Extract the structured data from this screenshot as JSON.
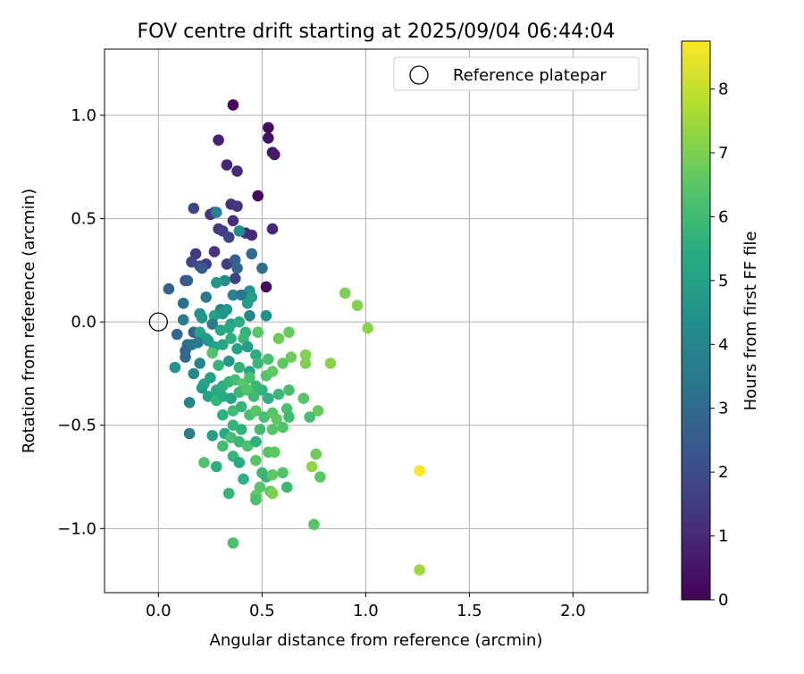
{
  "chart_data": {
    "type": "scatter",
    "title": "FOV centre drift starting at 2025/09/04 06:44:04",
    "xlabel": "Angular distance from reference (arcmin)",
    "ylabel": "Rotation from reference (arcmin)",
    "xlim": [
      -0.26,
      2.36
    ],
    "ylim": [
      -1.31,
      1.32
    ],
    "xticks": [
      0.0,
      0.5,
      1.0,
      1.5,
      2.0
    ],
    "xtick_labels": [
      "0.0",
      "0.5",
      "1.0",
      "1.5",
      "2.0"
    ],
    "yticks": [
      -1.0,
      -0.5,
      0.0,
      0.5,
      1.0
    ],
    "ytick_labels": [
      "−1.0",
      "−0.5",
      "0.0",
      "0.5",
      "1.0"
    ],
    "grid": true,
    "legend": {
      "position": "top-right",
      "entries": [
        "Reference platepar"
      ]
    },
    "colorbar": {
      "label": "Hours from first FF file",
      "range": [
        0,
        8.75
      ],
      "ticks": [
        0,
        1,
        2,
        3,
        4,
        5,
        6,
        7,
        8
      ],
      "tick_labels": [
        "0",
        "1",
        "2",
        "3",
        "4",
        "5",
        "6",
        "7",
        "8"
      ],
      "colormap": "viridis"
    },
    "reference_point": {
      "x": 0.0,
      "y": 0.0
    },
    "series": [
      {
        "points": [
          [
            0.36,
            1.05,
            0.2
          ],
          [
            0.53,
            0.94,
            0.3
          ],
          [
            0.53,
            0.89,
            0.4
          ],
          [
            0.55,
            0.82,
            0.5
          ],
          [
            0.56,
            0.81,
            0.6
          ],
          [
            0.29,
            0.88,
            0.8
          ],
          [
            0.33,
            0.76,
            0.9
          ],
          [
            0.38,
            0.73,
            1.0
          ],
          [
            0.48,
            0.61,
            0.2
          ],
          [
            0.35,
            0.57,
            1.2
          ],
          [
            0.38,
            0.56,
            1.3
          ],
          [
            0.27,
            0.53,
            1.5
          ],
          [
            0.17,
            0.55,
            1.8
          ],
          [
            0.25,
            0.52,
            1.4
          ],
          [
            0.36,
            0.49,
            1.1
          ],
          [
            0.29,
            0.45,
            1.4
          ],
          [
            0.31,
            0.44,
            1.6
          ],
          [
            0.42,
            0.43,
            1.2
          ],
          [
            0.45,
            0.42,
            1.0
          ],
          [
            0.55,
            0.45,
            1.0
          ],
          [
            0.34,
            0.41,
            1.7
          ],
          [
            0.28,
            0.53,
            3.8
          ],
          [
            0.39,
            0.44,
            4.2
          ],
          [
            0.18,
            0.33,
            1.5
          ],
          [
            0.27,
            0.34,
            1.2
          ],
          [
            0.16,
            0.29,
            1.9
          ],
          [
            0.2,
            0.27,
            2.0
          ],
          [
            0.23,
            0.28,
            1.6
          ],
          [
            0.21,
            0.26,
            2.4
          ],
          [
            0.33,
            0.28,
            1.6
          ],
          [
            0.37,
            0.3,
            2.7
          ],
          [
            0.38,
            0.26,
            2.9
          ],
          [
            0.5,
            0.26,
            3.2
          ],
          [
            0.45,
            0.33,
            3.0
          ],
          [
            0.37,
            0.21,
            1.7
          ],
          [
            0.13,
            0.2,
            2.2
          ],
          [
            0.14,
            0.2,
            2.6
          ],
          [
            0.05,
            0.16,
            2.8
          ],
          [
            0.32,
            0.2,
            4.3
          ],
          [
            0.28,
            0.19,
            4.6
          ],
          [
            0.52,
            0.17,
            0.2
          ],
          [
            0.44,
            0.15,
            4.5
          ],
          [
            0.12,
            0.09,
            3.2
          ],
          [
            0.23,
            0.12,
            3.5
          ],
          [
            0.36,
            0.13,
            3.9
          ],
          [
            0.4,
            0.13,
            3.4
          ],
          [
            0.45,
            0.12,
            5.0
          ],
          [
            0.43,
            0.09,
            4.8
          ],
          [
            0.3,
            0.06,
            3.8
          ],
          [
            0.33,
            0.06,
            4.5
          ],
          [
            0.12,
            0.01,
            3.6
          ],
          [
            0.2,
            0.04,
            4.4
          ],
          [
            0.21,
            0.02,
            4.6
          ],
          [
            0.27,
            0.03,
            5.1
          ],
          [
            0.31,
            0.04,
            4.7
          ],
          [
            0.35,
            -0.01,
            4.9
          ],
          [
            0.39,
            0.0,
            5.5
          ],
          [
            0.44,
            0.03,
            3.9
          ],
          [
            0.52,
            0.03,
            4.4
          ],
          [
            0.09,
            -0.06,
            2.9
          ],
          [
            0.17,
            -0.05,
            2.7
          ],
          [
            0.26,
            -0.01,
            3.6
          ],
          [
            0.2,
            -0.05,
            5.1
          ],
          [
            0.23,
            -0.08,
            4.7
          ],
          [
            0.3,
            -0.04,
            5.2
          ],
          [
            0.34,
            -0.03,
            5.4
          ],
          [
            0.42,
            -0.05,
            5.7
          ],
          [
            0.48,
            -0.05,
            6.5
          ],
          [
            0.41,
            -0.08,
            5.9
          ],
          [
            0.14,
            -0.11,
            3.2
          ],
          [
            0.13,
            -0.14,
            2.9
          ],
          [
            0.16,
            -0.11,
            3.3
          ],
          [
            0.19,
            -0.1,
            3.5
          ],
          [
            0.24,
            -0.09,
            4.7
          ],
          [
            0.27,
            -0.12,
            5.0
          ],
          [
            0.31,
            -0.11,
            5.3
          ],
          [
            0.35,
            -0.08,
            5.6
          ],
          [
            0.38,
            -0.13,
            5.1
          ],
          [
            0.43,
            -0.12,
            4.8
          ],
          [
            0.47,
            -0.16,
            5.5
          ],
          [
            0.58,
            -0.08,
            6.8
          ],
          [
            0.63,
            -0.05,
            6.7
          ],
          [
            0.13,
            -0.17,
            3.0
          ],
          [
            0.08,
            -0.22,
            4.5
          ],
          [
            0.2,
            -0.2,
            3.9
          ],
          [
            0.26,
            -0.15,
            6.3
          ],
          [
            0.29,
            -0.21,
            5.8
          ],
          [
            0.34,
            -0.19,
            4.6
          ],
          [
            0.39,
            -0.22,
            5.7
          ],
          [
            0.44,
            -0.24,
            5.3
          ],
          [
            0.48,
            -0.2,
            5.9
          ],
          [
            0.53,
            -0.18,
            6.2
          ],
          [
            0.6,
            -0.2,
            6.6
          ],
          [
            0.64,
            -0.17,
            6.8
          ],
          [
            0.71,
            -0.16,
            7.1
          ],
          [
            0.71,
            -0.2,
            7.0
          ],
          [
            0.83,
            -0.2,
            7.2
          ],
          [
            0.9,
            0.14,
            7.0
          ],
          [
            0.96,
            0.08,
            7.1
          ],
          [
            1.01,
            -0.03,
            7.2
          ],
          [
            0.17,
            -0.25,
            4.1
          ],
          [
            0.22,
            -0.3,
            5.2
          ],
          [
            0.25,
            -0.27,
            5.0
          ],
          [
            0.28,
            -0.33,
            5.3
          ],
          [
            0.31,
            -0.31,
            5.6
          ],
          [
            0.34,
            -0.29,
            5.8
          ],
          [
            0.37,
            -0.28,
            6.1
          ],
          [
            0.41,
            -0.3,
            6.5
          ],
          [
            0.44,
            -0.27,
            6.2
          ],
          [
            0.47,
            -0.31,
            5.9
          ],
          [
            0.52,
            -0.26,
            6.4
          ],
          [
            0.55,
            -0.24,
            6.6
          ],
          [
            0.21,
            -0.32,
            4.8
          ],
          [
            0.15,
            -0.39,
            3.9
          ],
          [
            0.24,
            -0.36,
            5.0
          ],
          [
            0.28,
            -0.38,
            5.8
          ],
          [
            0.31,
            -0.36,
            5.4
          ],
          [
            0.35,
            -0.37,
            5.1
          ],
          [
            0.39,
            -0.34,
            5.9
          ],
          [
            0.43,
            -0.33,
            6.3
          ],
          [
            0.46,
            -0.36,
            6.0
          ],
          [
            0.5,
            -0.33,
            5.7
          ],
          [
            0.53,
            -0.37,
            5.6
          ],
          [
            0.58,
            -0.35,
            5.9
          ],
          [
            0.63,
            -0.33,
            6.1
          ],
          [
            0.7,
            -0.37,
            6.4
          ],
          [
            0.31,
            -0.45,
            5.6
          ],
          [
            0.36,
            -0.43,
            6.0
          ],
          [
            0.4,
            -0.41,
            5.8
          ],
          [
            0.44,
            -0.45,
            6.2
          ],
          [
            0.47,
            -0.43,
            6.5
          ],
          [
            0.51,
            -0.46,
            6.1
          ],
          [
            0.55,
            -0.44,
            6.4
          ],
          [
            0.57,
            -0.47,
            6.6
          ],
          [
            0.62,
            -0.42,
            6.2
          ],
          [
            0.63,
            -0.46,
            6.0
          ],
          [
            0.73,
            -0.46,
            6.1
          ],
          [
            0.77,
            -0.43,
            6.7
          ],
          [
            0.36,
            -0.5,
            5.8
          ],
          [
            0.4,
            -0.52,
            5.7
          ],
          [
            0.49,
            -0.52,
            6.0
          ],
          [
            0.55,
            -0.52,
            6.4
          ],
          [
            0.6,
            -0.51,
            6.3
          ],
          [
            0.15,
            -0.54,
            3.6
          ],
          [
            0.26,
            -0.55,
            5.0
          ],
          [
            0.32,
            -0.54,
            5.4
          ],
          [
            0.35,
            -0.56,
            6.1
          ],
          [
            0.39,
            -0.58,
            5.9
          ],
          [
            0.43,
            -0.6,
            6.2
          ],
          [
            0.47,
            -0.58,
            5.6
          ],
          [
            0.31,
            -0.6,
            6.0
          ],
          [
            0.53,
            -0.63,
            6.4
          ],
          [
            0.56,
            -0.63,
            6.6
          ],
          [
            0.22,
            -0.68,
            6.3
          ],
          [
            0.28,
            -0.7,
            5.6
          ],
          [
            0.36,
            -0.65,
            5.8
          ],
          [
            0.39,
            -0.68,
            5.4
          ],
          [
            0.47,
            -0.67,
            6.5
          ],
          [
            0.5,
            -0.73,
            6.0
          ],
          [
            0.52,
            -0.75,
            5.8
          ],
          [
            0.55,
            -0.74,
            6.6
          ],
          [
            0.6,
            -0.73,
            6.3
          ],
          [
            0.62,
            -0.8,
            5.9
          ],
          [
            0.76,
            -0.64,
            6.8
          ],
          [
            0.78,
            -0.75,
            6.5
          ],
          [
            0.74,
            -0.7,
            7.3
          ],
          [
            0.34,
            -0.83,
            5.8
          ],
          [
            0.41,
            -0.76,
            5.6
          ],
          [
            0.47,
            -0.84,
            6.6
          ],
          [
            0.49,
            -0.8,
            6.4
          ],
          [
            0.54,
            -0.82,
            6.5
          ],
          [
            0.55,
            -0.83,
            7.0
          ],
          [
            0.47,
            -0.86,
            6.2
          ],
          [
            0.36,
            -1.07,
            6.2
          ],
          [
            0.75,
            -0.98,
            6.4
          ],
          [
            1.26,
            -0.72,
            8.7
          ],
          [
            1.26,
            -1.2,
            7.5
          ]
        ]
      }
    ]
  }
}
